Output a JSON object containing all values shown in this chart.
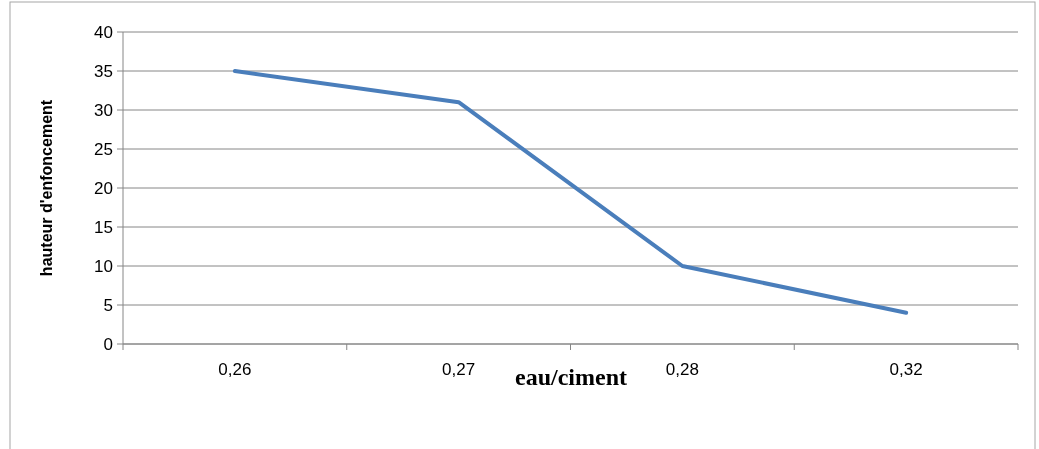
{
  "chart_data": {
    "type": "line",
    "xlabel": "eau/ciment",
    "ylabel": "hauteur d'enfoncement",
    "categories": [
      "0,26",
      "0,27",
      "0,28",
      "0,32"
    ],
    "series": [
      {
        "color": "#4a7ebb",
        "values": [
          35,
          31,
          10,
          4
        ]
      }
    ],
    "ylim": [
      0,
      40
    ],
    "yticks": [
      0,
      5,
      10,
      15,
      20,
      25,
      30,
      35,
      40
    ],
    "grid": "y",
    "marker": "none",
    "line_style": "solid"
  }
}
